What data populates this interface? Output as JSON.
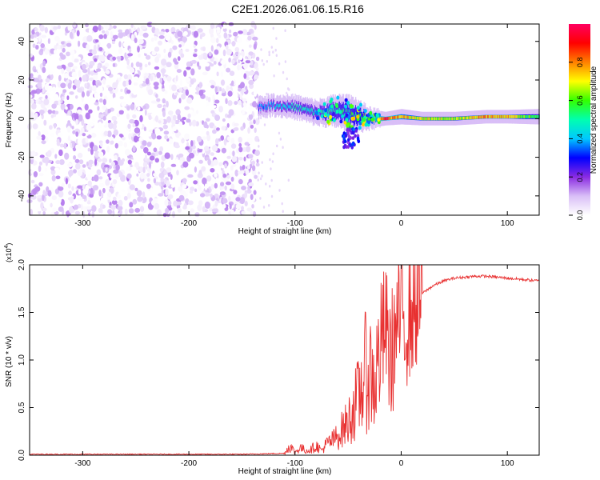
{
  "title": "C2E1.2026.061.06.15.R16",
  "chart_data": [
    {
      "type": "heatmap",
      "xlabel": "Height of straight line (km)",
      "ylabel": "Frequency (Hz)",
      "xlim": [
        -350,
        130
      ],
      "ylim": [
        -50,
        49
      ],
      "xticks": [
        -300,
        -200,
        -100,
        0,
        100
      ],
      "yticks": [
        -40,
        -20,
        0,
        20,
        40
      ],
      "colorbar": {
        "label": "Normalized spectral amplitude",
        "range": [
          0,
          1
        ],
        "ticks": [
          "0.0",
          "0.2",
          "0.4",
          "0.6",
          "0.8"
        ],
        "colors": [
          "#ffffff",
          "#d9bff7",
          "#8a2be2",
          "#0000ff",
          "#00c8ff",
          "#00ffb0",
          "#33ff00",
          "#ffff00",
          "#ff8000",
          "#ff0000",
          "#ff0060"
        ]
      },
      "noise_region": {
        "x_start": -350,
        "x_end": -135,
        "amplitude": 0.15
      },
      "line_trace": [
        {
          "x": -135,
          "y": 6,
          "width": 6,
          "amplitude": 0.35
        },
        {
          "x": -120,
          "y": 7,
          "width": 6,
          "amplitude": 0.45
        },
        {
          "x": -100,
          "y": 6,
          "width": 7,
          "amplitude": 0.5
        },
        {
          "x": -80,
          "y": 3,
          "width": 8,
          "amplitude": 0.5
        },
        {
          "x": -60,
          "y": 4,
          "width": 12,
          "amplitude": 0.55
        },
        {
          "x": -45,
          "y": 2,
          "width": 14,
          "amplitude": 0.6
        },
        {
          "x": -30,
          "y": 0,
          "width": 6,
          "amplitude": 0.7
        },
        {
          "x": -15,
          "y": 0,
          "width": 3,
          "amplitude": 0.95
        },
        {
          "x": 0,
          "y": 1,
          "width": 4,
          "amplitude": 0.8
        },
        {
          "x": 20,
          "y": 0,
          "width": 3,
          "amplitude": 0.75
        },
        {
          "x": 50,
          "y": 0,
          "width": 3,
          "amplitude": 0.7
        },
        {
          "x": 80,
          "y": 1,
          "width": 3,
          "amplitude": 0.85
        },
        {
          "x": 100,
          "y": 1,
          "width": 3,
          "amplitude": 0.8
        },
        {
          "x": 130,
          "y": 1,
          "width": 4,
          "amplitude": 0.55
        }
      ]
    },
    {
      "type": "line",
      "xlabel": "Height of straight line (km)",
      "ylabel": "SNR (10 * v/v)",
      "scale_label": "(x10",
      "scale_exp": "4",
      "scale_close": ")",
      "xlim": [
        -350,
        130
      ],
      "ylim": [
        0,
        2.0
      ],
      "xticks": [
        -300,
        -200,
        -100,
        0,
        100
      ],
      "yticks": [
        "0.0",
        "0.5",
        "1.0",
        "1.5",
        "2.0"
      ],
      "line_color": "#e83030",
      "series": [
        {
          "x": [
            -350,
            -300,
            -250,
            -200,
            -150,
            -110,
            -105,
            -100,
            -95,
            -90,
            -85,
            -80,
            -75,
            -70,
            -65,
            -60,
            -55,
            -50,
            -45,
            -40,
            -35,
            -30,
            -25,
            -20,
            -15,
            -10,
            -5,
            0,
            5,
            10,
            15,
            20,
            30,
            40,
            50,
            60,
            70,
            80,
            90,
            100,
            110,
            120,
            130
          ],
          "values": [
            0.01,
            0.01,
            0.01,
            0.01,
            0.01,
            0.02,
            0.1,
            0.03,
            0.08,
            0.05,
            0.06,
            0.1,
            0.05,
            0.12,
            0.15,
            0.2,
            0.28,
            0.35,
            0.5,
            0.6,
            0.85,
            0.9,
            0.75,
            1.1,
            1.35,
            1.0,
            1.3,
            1.5,
            1.4,
            1.5,
            1.6,
            1.7,
            1.78,
            1.83,
            1.86,
            1.87,
            1.88,
            1.88,
            1.87,
            1.86,
            1.85,
            1.84,
            1.83
          ]
        }
      ]
    }
  ]
}
